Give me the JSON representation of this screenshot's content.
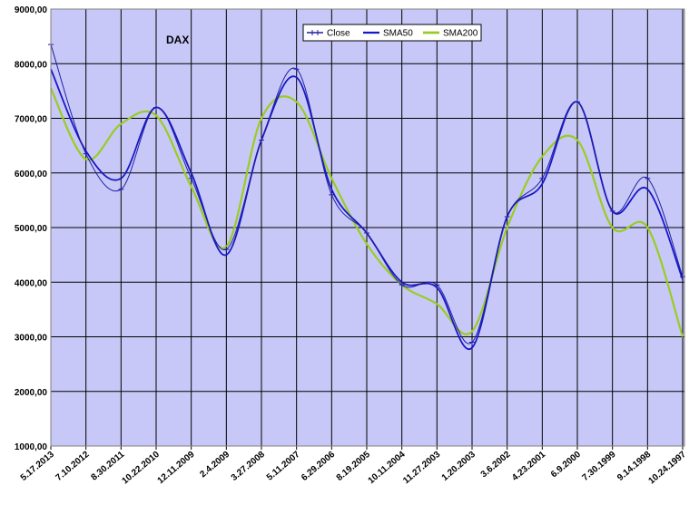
{
  "chart_data": {
    "type": "line",
    "title": "DAX",
    "xlabel": "",
    "ylabel": "",
    "ylim": [
      1000,
      9000
    ],
    "yticks": [
      "1000,00",
      "2000,00",
      "3000,00",
      "4000,00",
      "5000,00",
      "6000,00",
      "7000,00",
      "8000,00",
      "9000,00"
    ],
    "xticks": [
      "5.17.2013",
      "7.10.2012",
      "8.30.2011",
      "10.22.2010",
      "12.11.2009",
      "2.4.2009",
      "3.27.2008",
      "5.11.2007",
      "6.29.2006",
      "8.19.2005",
      "10.11.2004",
      "11.27.2003",
      "1.20.2003",
      "3.6.2002",
      "4.23.2001",
      "6.9.2000",
      "7.30.1999",
      "9.14.1998",
      "10.24.1997"
    ],
    "x_order": "dates descending (newest at left)",
    "grid": true,
    "legend_position": "top-right",
    "colors": {
      "plot_background": "#c8c8f8",
      "close": "#1f1fa0",
      "sma50": "#1818c8",
      "sma200": "#99cc22",
      "grid": "#000000"
    },
    "series": [
      {
        "name": "Close",
        "marker": "plus",
        "x": [
          "5.17.2013",
          "7.10.2012",
          "8.30.2011",
          "10.22.2010",
          "12.11.2009",
          "2.4.2009",
          "3.27.2008",
          "5.11.2007",
          "6.29.2006",
          "8.19.2005",
          "10.11.2004",
          "11.27.2003",
          "1.20.2003",
          "3.6.2002",
          "4.23.2001",
          "6.9.2000",
          "7.30.1999",
          "9.14.1998",
          "10.24.1997"
        ],
        "values": [
          8350,
          6350,
          5700,
          7200,
          5900,
          4600,
          6600,
          7900,
          5600,
          4900,
          3950,
          3950,
          2900,
          5200,
          5900,
          7300,
          5300,
          5900,
          4100
        ]
      },
      {
        "name": "SMA50",
        "x": [
          "5.17.2013",
          "7.10.2012",
          "8.30.2011",
          "10.22.2010",
          "12.11.2009",
          "2.4.2009",
          "3.27.2008",
          "5.11.2007",
          "6.29.2006",
          "8.19.2005",
          "10.11.2004",
          "11.27.2003",
          "1.20.2003",
          "3.6.2002",
          "4.23.2001",
          "6.9.2000",
          "7.30.1999",
          "9.14.1998",
          "10.24.1997"
        ],
        "values": [
          7900,
          6400,
          5900,
          7200,
          6000,
          4500,
          6600,
          7750,
          5700,
          4900,
          4000,
          3900,
          2800,
          5200,
          5800,
          7300,
          5300,
          5700,
          4050
        ]
      },
      {
        "name": "SMA200",
        "x": [
          "5.17.2013",
          "7.10.2012",
          "8.30.2011",
          "10.22.2010",
          "12.11.2009",
          "2.4.2009",
          "3.27.2008",
          "5.11.2007",
          "6.29.2006",
          "8.19.2005",
          "10.11.2004",
          "11.27.2003",
          "1.20.2003",
          "3.6.2002",
          "4.23.2001",
          "6.9.2000",
          "7.30.1999",
          "9.14.1998",
          "10.24.1997"
        ],
        "values": [
          7550,
          6250,
          6900,
          7050,
          5750,
          4650,
          7000,
          7300,
          5900,
          4700,
          3950,
          3600,
          3100,
          5000,
          6300,
          6600,
          5000,
          5000,
          3000
        ]
      }
    ]
  }
}
